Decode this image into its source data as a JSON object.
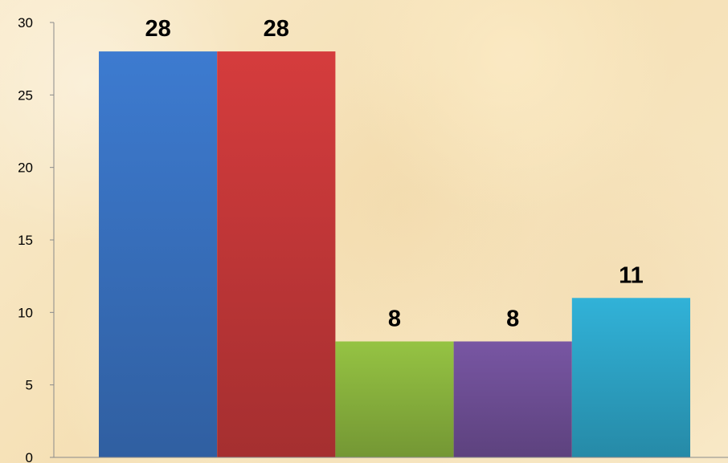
{
  "chart_data": {
    "type": "bar",
    "categories": [
      "",
      "",
      "",
      "",
      ""
    ],
    "values": [
      28,
      28,
      8,
      8,
      11
    ],
    "data_labels": [
      "28",
      "28",
      "8",
      "8",
      "11"
    ],
    "colors": [
      "#3a74c4",
      "#c9393a",
      "#8db83f",
      "#71519a",
      "#2ea8cc"
    ],
    "title": "",
    "xlabel": "",
    "ylabel": "",
    "ylim": [
      0,
      30
    ],
    "yticks": [
      0,
      5,
      10,
      15,
      20,
      25,
      30
    ],
    "ytick_labels": [
      "0",
      "5",
      "10",
      "15",
      "20",
      "25",
      "30"
    ],
    "grid": false,
    "legend": "none"
  }
}
